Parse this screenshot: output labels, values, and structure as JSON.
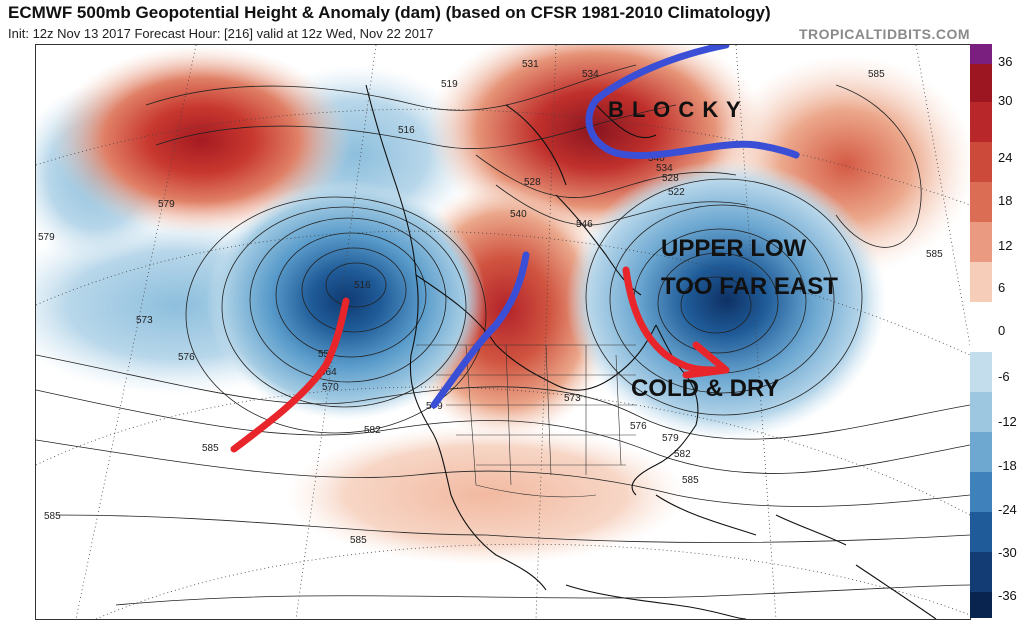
{
  "header": {
    "title": "ECMWF 500mb Geopotential Height & Anomaly (dam) (based on CFSR 1981-2010 Climatology)",
    "subtitle": "Init: 12z Nov 13 2017   Forecast Hour: [216]   valid at 12z Wed, Nov 22 2017",
    "brand": "TROPICALTIDBITS.COM"
  },
  "colorbar": {
    "labels": [
      "36",
      "30",
      "24",
      "18",
      "12",
      "6",
      "0",
      "-6",
      "-12",
      "-18",
      "-24",
      "-30",
      "-36"
    ],
    "colors": [
      "#7a1f7f",
      "#9b1620",
      "#b8282a",
      "#cc4a3a",
      "#dc6d55",
      "#ea9a80",
      "#f6cdb8",
      "#ffffff",
      "#c4dded",
      "#9dc7e0",
      "#6ea8d0",
      "#3f82bb",
      "#1f5b98",
      "#123c73",
      "#0a2450"
    ]
  },
  "annotations": {
    "blocky": "B L O C K Y",
    "upper_low_1": "UPPER LOW",
    "upper_low_2": "TOO FAR EAST",
    "cold_dry": "COLD & DRY"
  },
  "contour_labels": [
    "579",
    "579",
    "573",
    "576",
    "516",
    "516",
    "555",
    "564",
    "570",
    "585",
    "585",
    "585",
    "519",
    "531",
    "534",
    "540",
    "534",
    "528",
    "522",
    "528",
    "540",
    "546",
    "582",
    "579",
    "573",
    "576",
    "579",
    "582",
    "585",
    "585",
    "585"
  ],
  "colors": {
    "positive_anomaly": "#c8332f",
    "negative_anomaly": "#2f6aa8",
    "annotation_red": "#e8252a",
    "annotation_blue": "#3a4fd6"
  }
}
